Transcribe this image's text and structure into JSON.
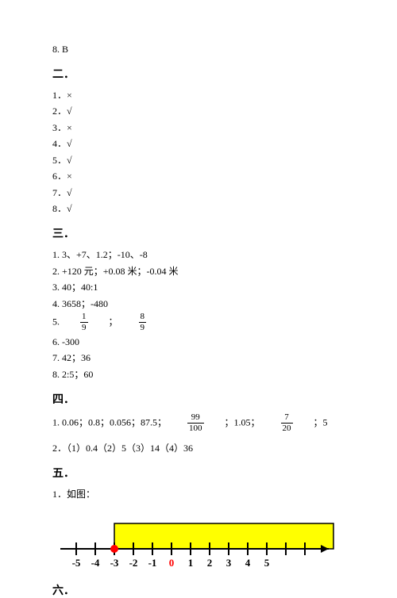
{
  "top_line": "8. B",
  "sections": {
    "s2": {
      "head": "二．",
      "items": [
        "1．×",
        "2．√",
        "3．×",
        "4．√",
        "5．√",
        "6．×",
        "7．√",
        "8．√"
      ]
    },
    "s3": {
      "head": "三．",
      "line1": "1. 3、+7、1.2；-10、-8",
      "line2": "2. +120 元；+0.08 米；-0.04 米",
      "line3": "3. 40；40:1",
      "line4": "4. 3658；-480",
      "line5_prefix": "5.",
      "frac1_num": "1",
      "frac1_den": "9",
      "line5_mid": "；",
      "frac2_num": "8",
      "frac2_den": "9",
      "line6": "6. -300",
      "line7": "7. 42；36",
      "line8": "8. 2:5；60"
    },
    "s4": {
      "head": "四．",
      "line1_a": "1. 0.06；0.8；0.056；87.5；",
      "frac3_num": "99",
      "frac3_den": "100",
      "line1_b": "；1.05；",
      "frac4_num": "7",
      "frac4_den": "20",
      "line1_c": "；5",
      "line2": "2．（1）0.4（2）5（3）14（4）36"
    },
    "s5": {
      "head": "五．",
      "line1": "1．如图："
    },
    "s6": {
      "head": "六．"
    }
  },
  "number_line": {
    "labels": [
      "-5",
      "-4",
      "-3",
      "-2",
      "-1",
      "0",
      "1",
      "2",
      "3",
      "4",
      "5"
    ],
    "box_fill": "#ffff00",
    "box_stroke": "#000000",
    "axis_color": "#000000",
    "circle_fill": "#ff0000",
    "zero_color": "#ff0000",
    "label_color": "#000000",
    "label_fontsize": 13,
    "label_fontweight": "bold"
  }
}
